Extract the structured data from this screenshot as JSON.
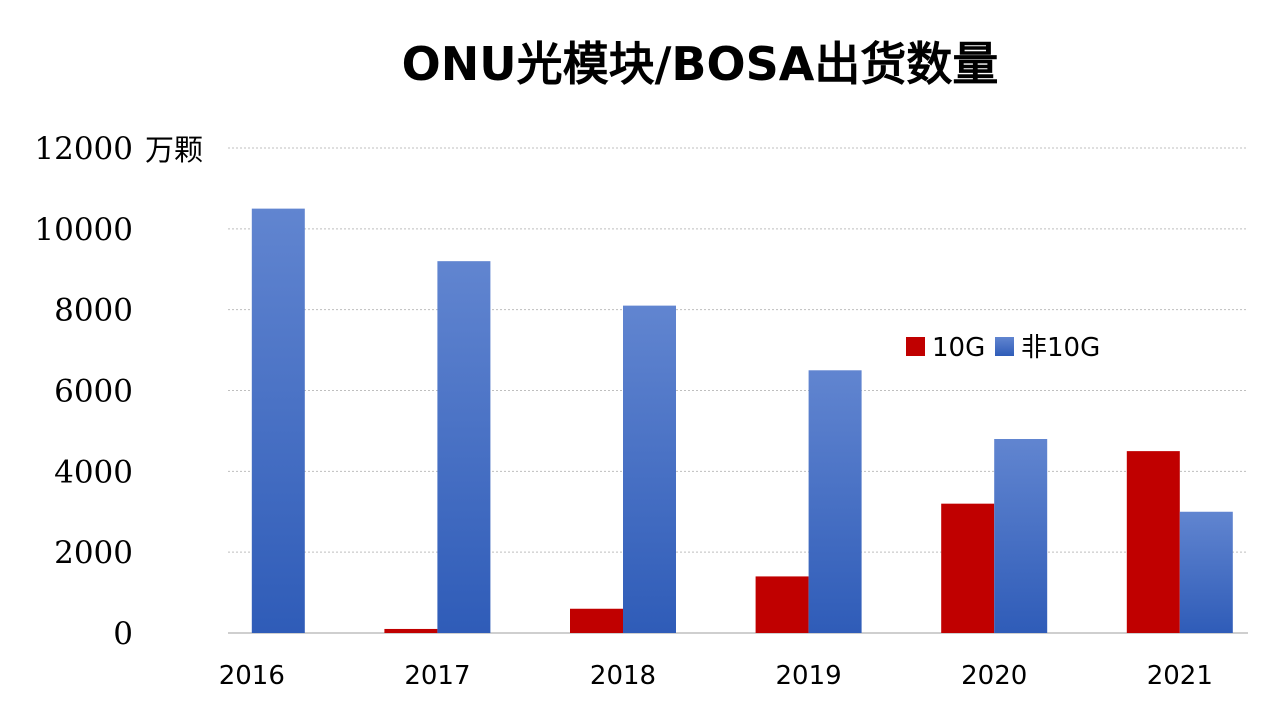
{
  "chart_data": {
    "type": "bar",
    "title": "ONU光模块/BOSA出货数量",
    "unit_label": "万颗",
    "categories": [
      "2016",
      "2017",
      "2018",
      "2019",
      "2020",
      "2021"
    ],
    "series": [
      {
        "name": "10G",
        "values": [
          0,
          100,
          600,
          1400,
          3200,
          4500
        ],
        "color": "#C00000"
      },
      {
        "name": "非10G",
        "values": [
          10500,
          9200,
          8100,
          6500,
          4800,
          3000
        ],
        "color": "#4472C4"
      }
    ],
    "ylim": [
      0,
      12000
    ],
    "yticks": [
      0,
      2000,
      4000,
      6000,
      8000,
      10000,
      12000
    ],
    "grid": true,
    "legend_position": "right"
  }
}
